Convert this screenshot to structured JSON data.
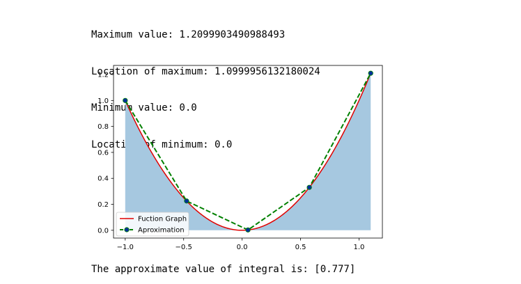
{
  "output_lines": [
    "Maximum value: 1.2099903490988493",
    "Location of maximum: 1.0999956132180024",
    "Minimum value: 0.0",
    "Location of minimum: 0.0"
  ],
  "result_line": "The approximate value of integral is: [0.777]",
  "colors": {
    "function_line": "#e00000",
    "approx_line": "#008000",
    "approx_marker": "#00309a",
    "fill": "#a6c8e0"
  },
  "chart_data": {
    "type": "line",
    "x_range": [
      -1.0,
      1.1
    ],
    "xlim": [
      -1.1,
      1.2
    ],
    "ylim": [
      -0.06,
      1.27
    ],
    "x_ticks": [
      -1.0,
      -0.5,
      0.0,
      0.5,
      1.0
    ],
    "x_tick_labels": [
      "−1.0",
      "−0.5",
      "0.0",
      "0.5",
      "1.0"
    ],
    "y_ticks": [
      0.0,
      0.2,
      0.4,
      0.6,
      0.8,
      1.0,
      1.2
    ],
    "y_tick_labels": [
      "0.0",
      "0.2",
      "0.4",
      "0.6",
      "0.8",
      "1.0",
      "1.2"
    ],
    "grid": false,
    "legend_position": "lower left",
    "series": [
      {
        "name": "Fuction Graph",
        "function": "x^2",
        "style": "solid red line with shaded area"
      },
      {
        "name": "Aproximation",
        "style": "dashed green line with markers",
        "x": [
          -1.0,
          -0.475,
          0.05,
          0.575,
          1.1
        ],
        "y": [
          1.0,
          0.2256,
          0.0025,
          0.3306,
          1.21
        ]
      }
    ]
  }
}
